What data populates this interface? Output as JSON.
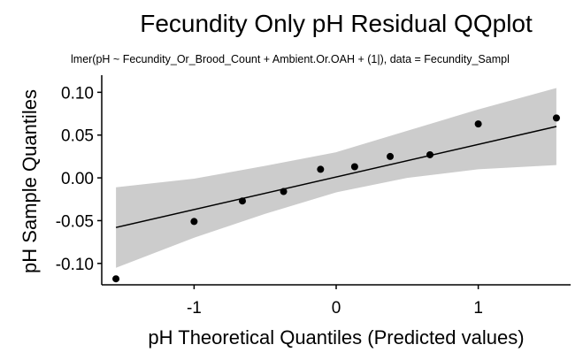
{
  "chart_data": {
    "type": "scatter",
    "title": "Fecundity Only pH Residual QQplot",
    "subtitle": "lmer(pH ~ Fecundity_Or_Brood_Count + Ambient.Or.OAH + (1|), data = Fecundity_Sampl",
    "xlabel": "pH Theoretical Quantiles (Predicted values)",
    "ylabel": "pH Sample Quantiles",
    "xlim": [
      -1.65,
      1.65
    ],
    "ylim": [
      -0.125,
      0.12
    ],
    "x_ticks": [
      -1,
      0,
      1
    ],
    "x_tick_labels": [
      "-1",
      "0",
      "1"
    ],
    "y_ticks": [
      0.1,
      0.05,
      0.0,
      -0.05,
      -0.1
    ],
    "y_tick_labels": [
      "0.10",
      "0.05",
      "0.00",
      "-0.05",
      "-0.10"
    ],
    "grid": false,
    "points": [
      {
        "x": -1.55,
        "y": -0.118
      },
      {
        "x": -1.0,
        "y": -0.051
      },
      {
        "x": -0.66,
        "y": -0.027
      },
      {
        "x": -0.37,
        "y": -0.016
      },
      {
        "x": -0.11,
        "y": 0.01
      },
      {
        "x": 0.13,
        "y": 0.013
      },
      {
        "x": 0.38,
        "y": 0.025
      },
      {
        "x": 0.66,
        "y": 0.027
      },
      {
        "x": 1.0,
        "y": 0.063
      },
      {
        "x": 1.55,
        "y": 0.07
      }
    ],
    "reference_line": {
      "x": [
        -1.55,
        1.55
      ],
      "y": [
        -0.058,
        0.06
      ]
    },
    "confidence_band": {
      "x": [
        -1.55,
        -1.0,
        -0.5,
        0.0,
        0.5,
        1.0,
        1.55
      ],
      "lower": [
        -0.105,
        -0.07,
        -0.042,
        -0.017,
        0.0,
        0.01,
        0.015
      ],
      "upper": [
        -0.011,
        -0.001,
        0.014,
        0.03,
        0.055,
        0.08,
        0.105
      ]
    },
    "colors": {
      "points": "#000000",
      "line": "#000000",
      "band": "#cccccc"
    }
  }
}
